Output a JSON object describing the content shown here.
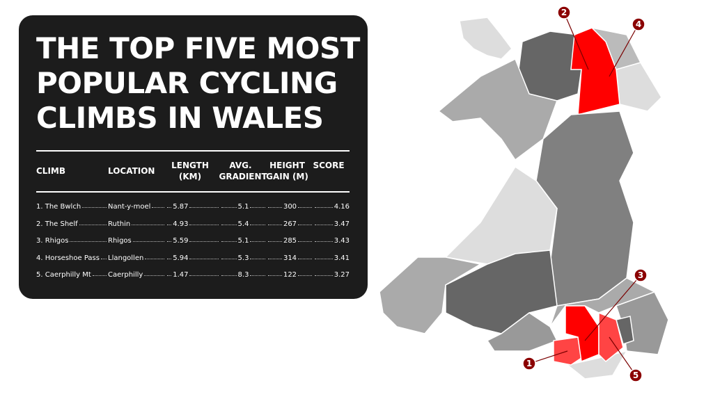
{
  "header": {
    "title": [
      "THE TOP FIVE MOST",
      "POPULAR CYCLING",
      "CLIMBS IN WALES"
    ]
  },
  "table": {
    "columns": [
      "CLIMB",
      "LOCATION",
      "LENGTH (KM)",
      "AVG. GRADIENT",
      "HEIGHT GAIN (M)",
      "SCORE"
    ],
    "rows": [
      [
        "1. The Bwlch",
        "Nant-y-moel",
        5.87,
        5.1,
        300,
        4.16
      ],
      [
        "2. The Shelf",
        "Ruthin",
        4.93,
        5.4,
        267,
        3.47
      ],
      [
        "3. Rhigos",
        "Rhigos",
        5.59,
        5.1,
        285,
        3.43
      ],
      [
        "4. Horseshoe Pass",
        "Llangollen",
        5.94,
        5.3,
        314,
        3.41
      ],
      [
        "5. Caerphilly Mt",
        "Caerphilly",
        1.47,
        8.3,
        122,
        3.27
      ]
    ]
  },
  "map": {
    "markers": [
      1,
      2,
      3,
      4,
      5
    ]
  }
}
